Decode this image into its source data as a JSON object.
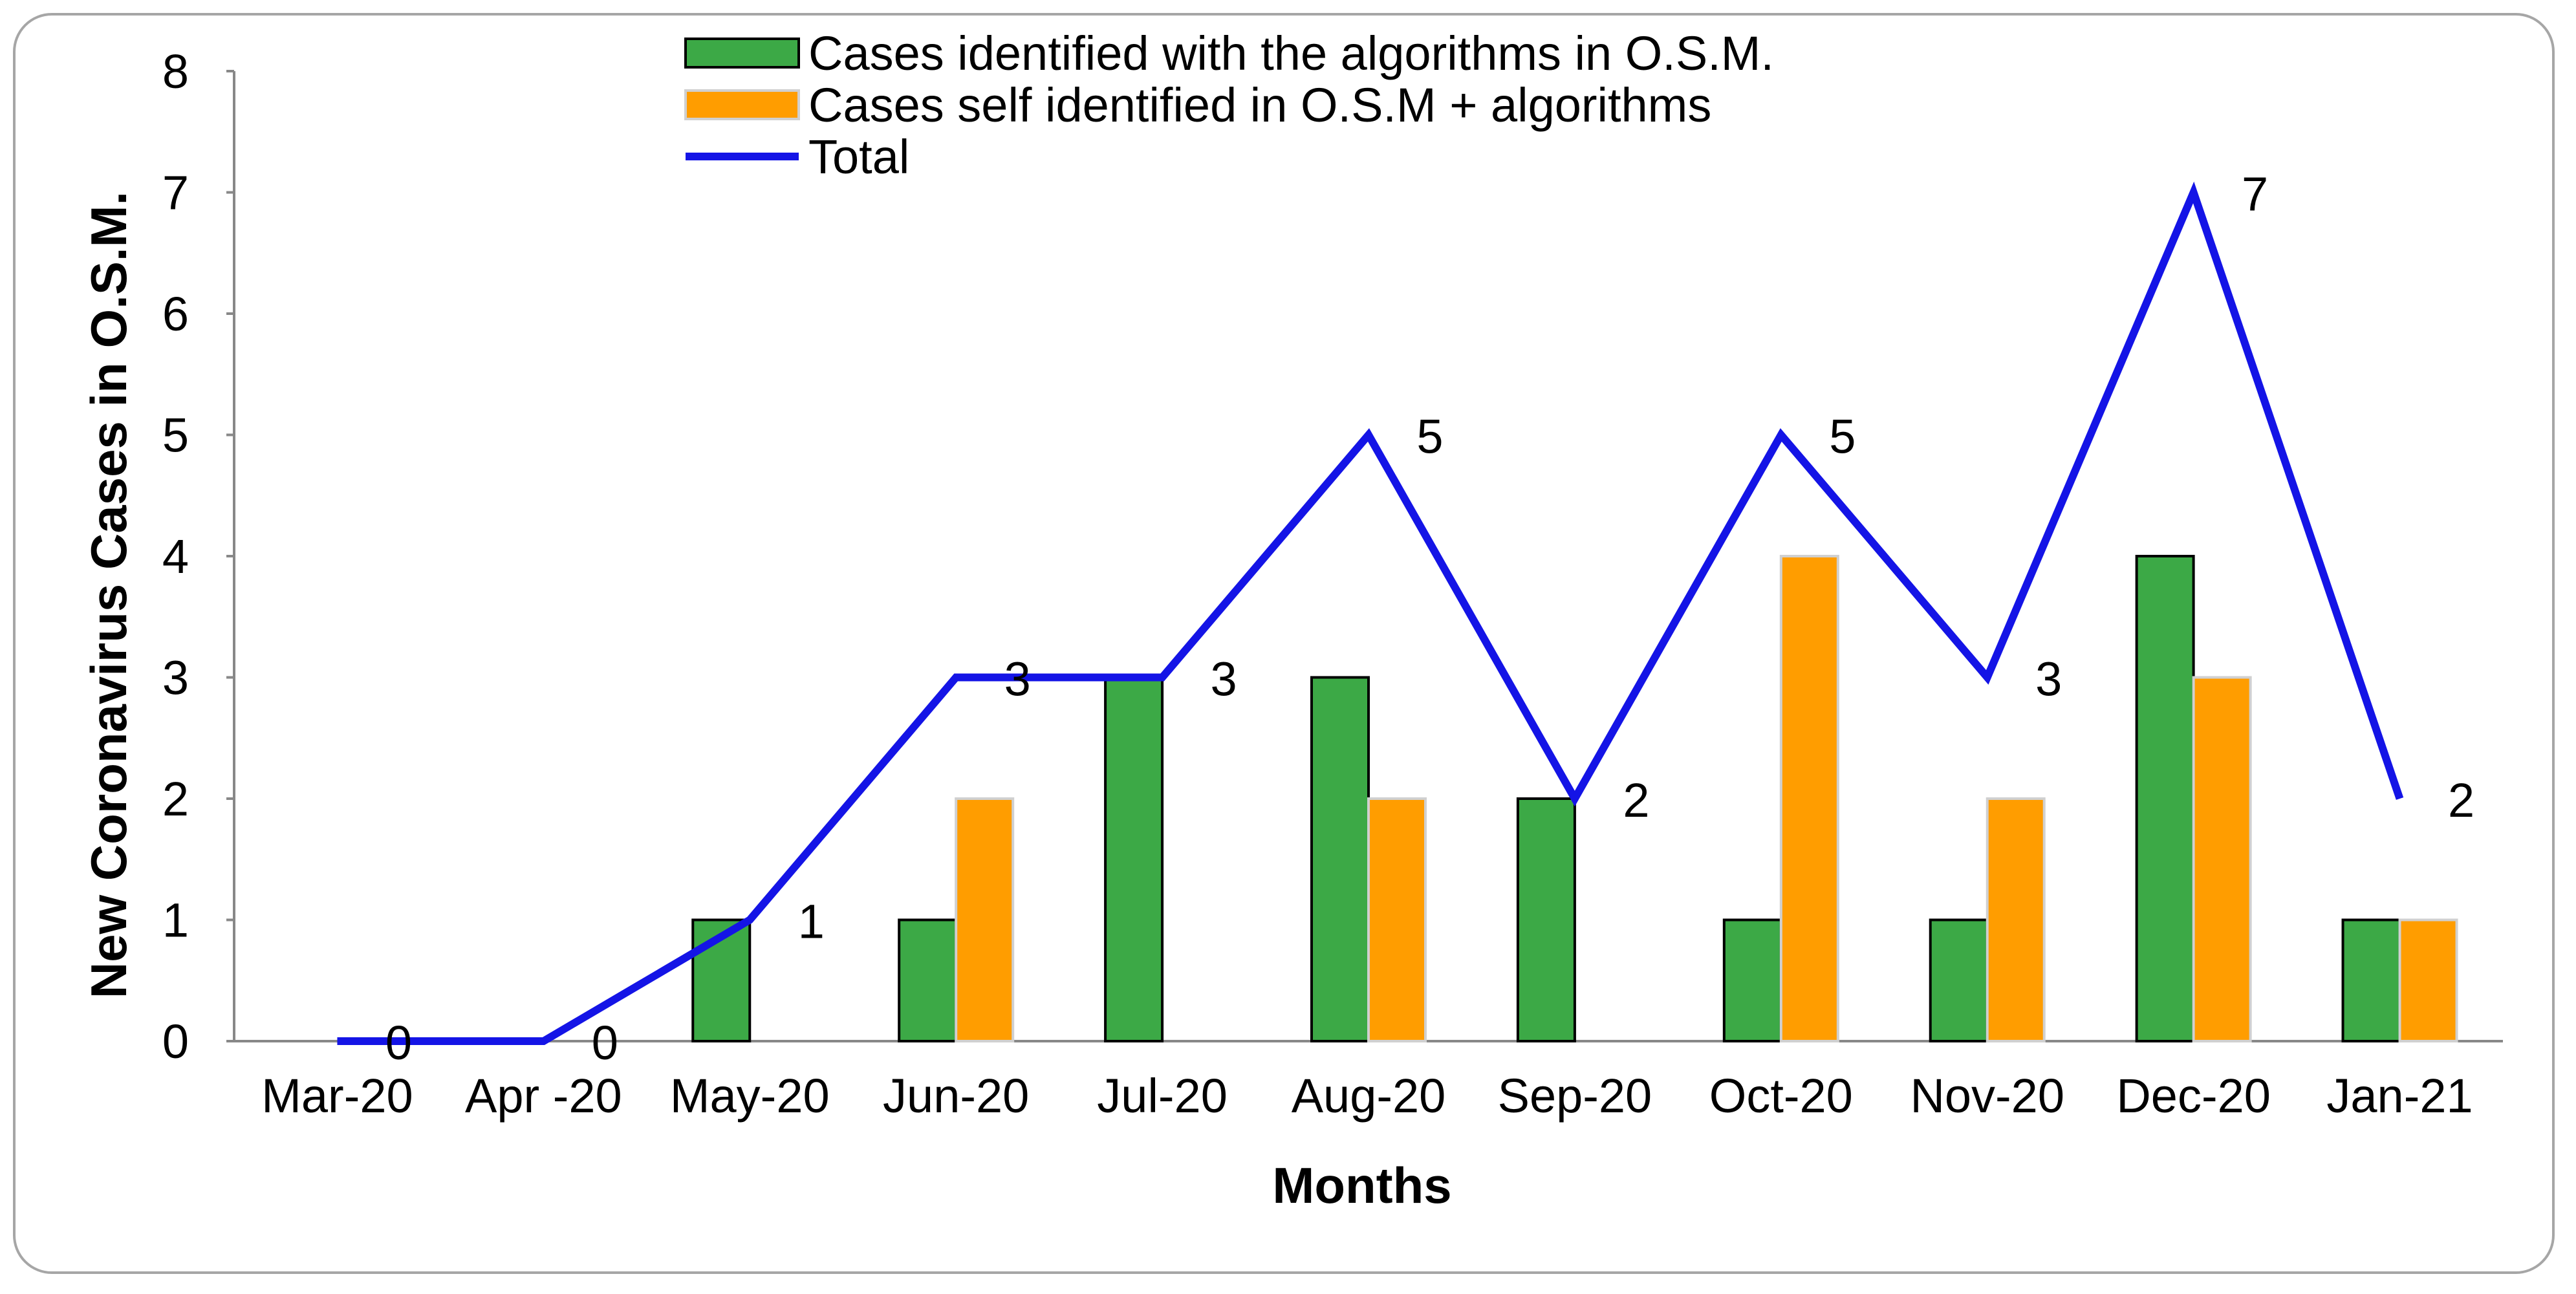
{
  "chart_data": {
    "type": "bar",
    "categories": [
      "Mar-20",
      "Apr -20",
      "May-20",
      "Jun-20",
      "Jul-20",
      "Aug-20",
      "Sep-20",
      "Oct-20",
      "Nov-20",
      "Dec-20",
      "Jan-21"
    ],
    "series": [
      {
        "name": "Cases identified with the algorithms in O.S.M.",
        "kind": "bar",
        "color": "#3ca946",
        "values": [
          0,
          0,
          1,
          1,
          3,
          3,
          2,
          1,
          1,
          4,
          1
        ]
      },
      {
        "name": "Cases self identified in O.S.M + algorithms",
        "kind": "bar",
        "color": "#ff9d00",
        "values": [
          0,
          0,
          0,
          2,
          0,
          2,
          0,
          4,
          2,
          3,
          1
        ]
      },
      {
        "name": "Total",
        "kind": "line",
        "color": "#1414e6",
        "values": [
          0,
          0,
          1,
          3,
          3,
          5,
          2,
          5,
          3,
          7,
          2
        ]
      }
    ],
    "data_labels": [
      "0",
      "0",
      "1",
      "3",
      "3",
      "5",
      "2",
      "5",
      "3",
      "7",
      "2"
    ],
    "title": "",
    "xlabel": "Months",
    "ylabel": "New Coronavirus Cases in O.S.M.",
    "ylim": [
      0,
      8
    ],
    "yticks": [
      "0",
      "1",
      "2",
      "3",
      "4",
      "5",
      "6",
      "7",
      "8"
    ],
    "grid": false,
    "legend_position": "top-center"
  }
}
